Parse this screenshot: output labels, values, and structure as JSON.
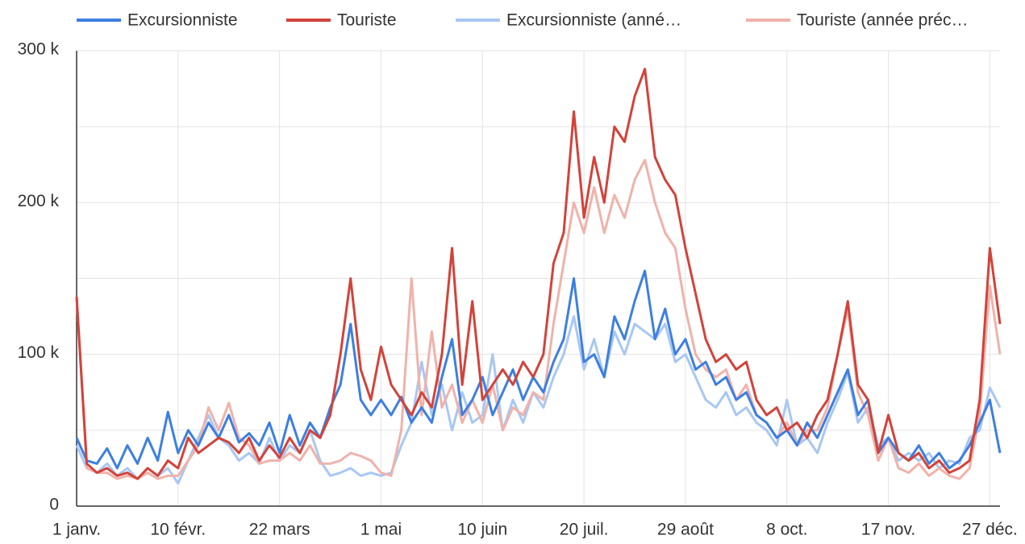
{
  "chart_data": {
    "type": "line",
    "x": [
      0,
      4,
      8,
      12,
      16,
      20,
      24,
      28,
      32,
      36,
      40,
      44,
      48,
      52,
      56,
      60,
      64,
      68,
      72,
      76,
      80,
      84,
      88,
      92,
      96,
      100,
      104,
      108,
      112,
      116,
      120,
      124,
      128,
      132,
      136,
      140,
      144,
      148,
      152,
      156,
      160,
      164,
      168,
      172,
      176,
      180,
      184,
      188,
      192,
      196,
      200,
      204,
      208,
      212,
      216,
      220,
      224,
      228,
      232,
      236,
      240,
      244,
      248,
      252,
      256,
      260,
      264,
      268,
      272,
      276,
      280,
      284,
      288,
      292,
      296,
      300,
      304,
      308,
      312,
      316,
      320,
      324,
      328,
      332,
      336,
      340,
      344,
      348,
      352,
      356,
      360,
      364
    ],
    "series": [
      {
        "name": "Excursionniste",
        "color": "#3d7fe0",
        "values": [
          45000,
          30000,
          28000,
          38000,
          25000,
          40000,
          28000,
          45000,
          30000,
          62000,
          35000,
          50000,
          40000,
          55000,
          45000,
          60000,
          42000,
          48000,
          40000,
          55000,
          35000,
          60000,
          40000,
          55000,
          45000,
          65000,
          80000,
          120000,
          70000,
          60000,
          70000,
          60000,
          72000,
          55000,
          65000,
          55000,
          85000,
          110000,
          60000,
          70000,
          85000,
          60000,
          75000,
          90000,
          70000,
          85000,
          75000,
          95000,
          110000,
          150000,
          95000,
          100000,
          85000,
          125000,
          110000,
          135000,
          155000,
          110000,
          130000,
          100000,
          110000,
          90000,
          95000,
          80000,
          85000,
          70000,
          75000,
          60000,
          55000,
          45000,
          50000,
          40000,
          55000,
          45000,
          60000,
          75000,
          90000,
          60000,
          70000,
          35000,
          45000,
          35000,
          30000,
          40000,
          28000,
          35000,
          25000,
          30000,
          40000,
          55000,
          70000,
          35000
        ]
      },
      {
        "name": "Touriste",
        "color": "#d2433a",
        "values": [
          138000,
          28000,
          22000,
          25000,
          20000,
          22000,
          18000,
          25000,
          20000,
          30000,
          25000,
          45000,
          35000,
          40000,
          45000,
          42000,
          35000,
          45000,
          30000,
          40000,
          32000,
          45000,
          35000,
          50000,
          45000,
          60000,
          100000,
          150000,
          90000,
          70000,
          105000,
          80000,
          70000,
          60000,
          75000,
          65000,
          100000,
          170000,
          80000,
          135000,
          70000,
          80000,
          90000,
          80000,
          95000,
          85000,
          100000,
          160000,
          180000,
          260000,
          190000,
          230000,
          200000,
          250000,
          240000,
          270000,
          288000,
          230000,
          215000,
          205000,
          170000,
          140000,
          110000,
          95000,
          100000,
          90000,
          95000,
          70000,
          60000,
          65000,
          50000,
          55000,
          45000,
          60000,
          70000,
          100000,
          135000,
          80000,
          70000,
          35000,
          60000,
          35000,
          30000,
          35000,
          25000,
          30000,
          22000,
          25000,
          30000,
          70000,
          170000,
          120000
        ]
      },
      {
        "name": "Excursionniste (anné…",
        "color": "#a8c7f4",
        "values": [
          40000,
          25000,
          22000,
          28000,
          20000,
          25000,
          18000,
          25000,
          20000,
          25000,
          15000,
          30000,
          45000,
          60000,
          45000,
          40000,
          30000,
          35000,
          28000,
          45000,
          30000,
          40000,
          35000,
          50000,
          30000,
          20000,
          22000,
          25000,
          20000,
          22000,
          20000,
          22000,
          40000,
          55000,
          95000,
          60000,
          80000,
          50000,
          75000,
          55000,
          60000,
          100000,
          50000,
          70000,
          55000,
          75000,
          65000,
          85000,
          100000,
          125000,
          90000,
          110000,
          85000,
          115000,
          100000,
          120000,
          115000,
          110000,
          120000,
          95000,
          100000,
          85000,
          70000,
          65000,
          75000,
          60000,
          65000,
          55000,
          50000,
          40000,
          70000,
          40000,
          45000,
          35000,
          55000,
          70000,
          88000,
          55000,
          65000,
          40000,
          45000,
          30000,
          35000,
          30000,
          35000,
          25000,
          30000,
          28000,
          45000,
          50000,
          78000,
          65000
        ]
      },
      {
        "name": "Touriste (année préc…",
        "color": "#f0b2aa",
        "values": [
          138000,
          25000,
          22000,
          22000,
          18000,
          20000,
          18000,
          22000,
          18000,
          20000,
          20000,
          30000,
          40000,
          65000,
          50000,
          68000,
          45000,
          40000,
          28000,
          30000,
          30000,
          35000,
          30000,
          40000,
          28000,
          28000,
          30000,
          35000,
          33000,
          30000,
          22000,
          20000,
          50000,
          150000,
          60000,
          115000,
          65000,
          80000,
          55000,
          70000,
          55000,
          80000,
          50000,
          65000,
          60000,
          75000,
          70000,
          120000,
          160000,
          200000,
          180000,
          210000,
          180000,
          205000,
          190000,
          215000,
          228000,
          200000,
          180000,
          170000,
          130000,
          100000,
          90000,
          85000,
          90000,
          70000,
          80000,
          60000,
          55000,
          45000,
          55000,
          40000,
          50000,
          50000,
          65000,
          100000,
          130000,
          75000,
          60000,
          30000,
          45000,
          25000,
          22000,
          28000,
          20000,
          25000,
          20000,
          18000,
          25000,
          60000,
          145000,
          100000
        ]
      }
    ],
    "xlim": [
      0,
      364
    ],
    "xticks": [
      {
        "value": 0,
        "label": "1 janv."
      },
      {
        "value": 40,
        "label": "10 févr."
      },
      {
        "value": 80,
        "label": "22 mars"
      },
      {
        "value": 120,
        "label": "1 mai"
      },
      {
        "value": 160,
        "label": "10 juin"
      },
      {
        "value": 200,
        "label": "20 juil."
      },
      {
        "value": 240,
        "label": "29 août"
      },
      {
        "value": 280,
        "label": "8 oct."
      },
      {
        "value": 320,
        "label": "17 nov."
      },
      {
        "value": 360,
        "label": "27 déc."
      }
    ],
    "ylim": [
      0,
      300000
    ],
    "yticks": [
      0,
      {
        "value": 100000,
        "label": "100 k"
      },
      {
        "value": 200000,
        "label": "200 k"
      },
      {
        "value": 300000,
        "label": "300 k"
      }
    ],
    "minor_yticks": [
      50000,
      150000,
      250000
    ],
    "grid": true,
    "legend": "top"
  }
}
